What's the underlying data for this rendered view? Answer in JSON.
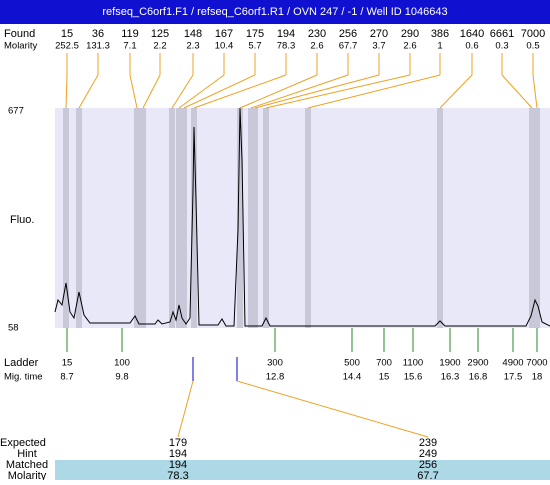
{
  "header": {
    "title": "refseq_C6orf1.F1 / refseq_C6orf1.R1 / OVN 247 / -1 / Well ID 1046643"
  },
  "found": {
    "label": "Found",
    "molarity_label": "Molarity",
    "sizes": [
      "15",
      "36",
      "119",
      "125",
      "148",
      "167",
      "175",
      "194",
      "230",
      "256",
      "270",
      "290",
      "386",
      "1640",
      "6661",
      "7000"
    ],
    "molarities": [
      "252.5",
      "131.3",
      "7.1",
      "2.2",
      "2.3",
      "10.4",
      "5.7",
      "78.3",
      "2.6",
      "67.7",
      "3.7",
      "2.6",
      "1",
      "0.6",
      "0.3",
      "0.5"
    ]
  },
  "axis": {
    "label": "Fluo.",
    "top": "677",
    "bottom": "58"
  },
  "ladder": {
    "label": "Ladder",
    "time_label": "Mig. time",
    "sizes": [
      "15",
      "100",
      "300",
      "500",
      "700",
      "1100",
      "1900",
      "2900",
      "4900",
      "7000"
    ],
    "times": [
      "8.7",
      "9.8",
      "12.8",
      "14.4",
      "15",
      "15.6",
      "16.3",
      "16.8",
      "17.5",
      "18"
    ]
  },
  "table": {
    "labels": [
      "Expected",
      "Hint",
      "Matched",
      "Molarity"
    ],
    "columns": [
      [
        "179",
        "194",
        "194",
        "78.3"
      ],
      [
        "239",
        "249",
        "256",
        "67.7"
      ]
    ]
  }
}
